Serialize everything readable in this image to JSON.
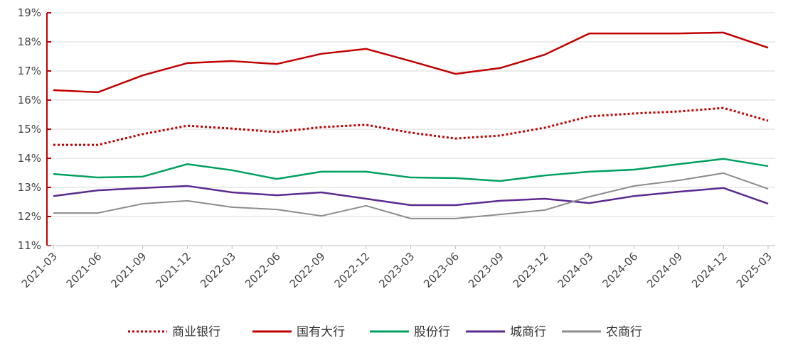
{
  "chart_data": {
    "type": "line",
    "title": "",
    "xlabel": "",
    "ylabel": "",
    "ylim": [
      11,
      19
    ],
    "yticks": [
      "11%",
      "12%",
      "13%",
      "14%",
      "15%",
      "16%",
      "17%",
      "18%",
      "19%"
    ],
    "categories": [
      "2021-03",
      "2021-06",
      "2021-09",
      "2021-12",
      "2022-03",
      "2022-06",
      "2022-09",
      "2022-12",
      "2023-03",
      "2023-06",
      "2023-09",
      "2023-12",
      "2024-03",
      "2024-06",
      "2024-09",
      "2024-12",
      "2025-03"
    ],
    "legend_position": "bottom",
    "series": [
      {
        "name": "商业银行",
        "color": "#c00000",
        "style": "dotted",
        "values": [
          14.46,
          14.46,
          14.83,
          15.12,
          15.02,
          14.9,
          15.07,
          15.15,
          14.88,
          14.68,
          14.78,
          15.05,
          15.44,
          15.54,
          15.61,
          15.73,
          15.29
        ]
      },
      {
        "name": "国有大行",
        "color": "#c00000",
        "style": "solid",
        "values": [
          16.34,
          16.27,
          16.85,
          17.27,
          17.34,
          17.24,
          17.59,
          17.76,
          17.34,
          16.9,
          17.1,
          17.56,
          18.29,
          18.29,
          18.29,
          18.32,
          17.8
        ]
      },
      {
        "name": "股份行",
        "color": "#00a060",
        "style": "solid",
        "values": [
          13.46,
          13.34,
          13.37,
          13.8,
          13.59,
          13.29,
          13.54,
          13.54,
          13.34,
          13.32,
          13.22,
          13.41,
          13.54,
          13.61,
          13.8,
          13.98,
          13.73
        ]
      },
      {
        "name": "城商行",
        "color": "#5b2a90",
        "style": "solid",
        "values": [
          12.7,
          12.9,
          12.98,
          13.05,
          12.83,
          12.73,
          12.83,
          12.61,
          12.39,
          12.39,
          12.54,
          12.61,
          12.46,
          12.7,
          12.85,
          12.98,
          12.44
        ]
      },
      {
        "name": "农商行",
        "color": "#8c8c8c",
        "style": "solid",
        "values": [
          12.12,
          12.12,
          12.44,
          12.54,
          12.32,
          12.24,
          12.02,
          12.37,
          11.93,
          11.93,
          12.07,
          12.22,
          12.68,
          13.05,
          13.24,
          13.49,
          12.95
        ]
      }
    ]
  }
}
